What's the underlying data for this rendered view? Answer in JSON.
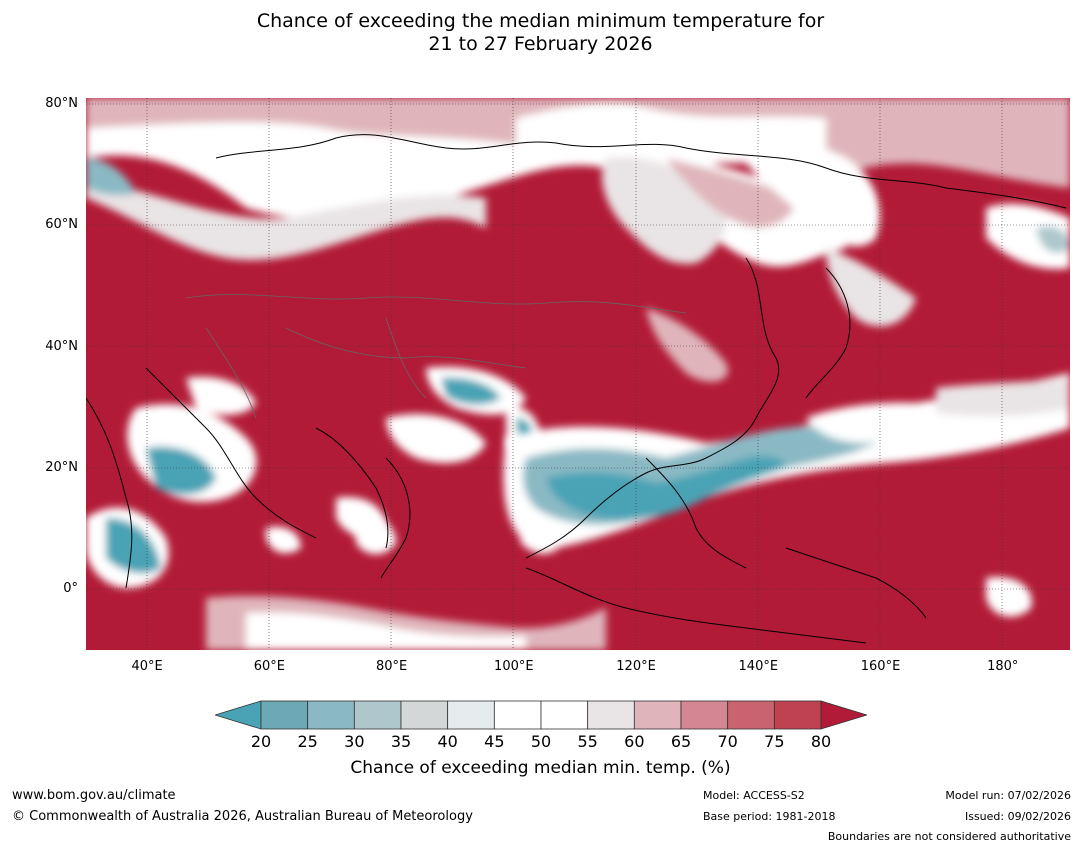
{
  "title": {
    "line1": "Chance of exceeding the median minimum temperature for",
    "line2": "21 to 27 February 2026"
  },
  "map": {
    "lon_range": [
      30,
      191
    ],
    "lat_range": [
      -10,
      81
    ],
    "lat_ticks": [
      {
        "lat": 80,
        "label": "80°N"
      },
      {
        "lat": 60,
        "label": "60°N"
      },
      {
        "lat": 40,
        "label": "40°N"
      },
      {
        "lat": 20,
        "label": "20°N"
      },
      {
        "lat": 0,
        "label": "0°"
      }
    ],
    "lon_ticks": [
      {
        "lon": 40,
        "label": "40°E"
      },
      {
        "lon": 60,
        "label": "60°E"
      },
      {
        "lon": 80,
        "label": "80°E"
      },
      {
        "lon": 100,
        "label": "100°E"
      },
      {
        "lon": 120,
        "label": "120°E"
      },
      {
        "lon": 140,
        "label": "140°E"
      },
      {
        "lon": 160,
        "label": "160°E"
      },
      {
        "lon": 180,
        "label": "180°"
      }
    ],
    "fill_color": "#b21b37"
  },
  "colorbar": {
    "ticks": [
      "20",
      "25",
      "30",
      "35",
      "40",
      "45",
      "50",
      "55",
      "60",
      "65",
      "70",
      "75",
      "80"
    ],
    "colors": [
      "#6aa9b5",
      "#8ab9c4",
      "#adc7cd",
      "#d3d7d8",
      "#e6eced",
      "#ffffff",
      "#ffffff",
      "#e9e4e5",
      "#dfb5bb",
      "#d48792",
      "#c96370",
      "#bf4251"
    ],
    "low_color": "#4aa3b5",
    "high_color": "#b21b37",
    "label": "Chance of exceeding median min. temp. (%)"
  },
  "footer": {
    "website": "www.bom.gov.au/climate",
    "copyright": "© Commonwealth of Australia 2026, Australian Bureau of Meteorology",
    "model": "Model: ACCESS-S2",
    "base_period": "Base period: 1981-2018",
    "model_run": "Model run: 07/02/2026",
    "issued": "Issued: 09/02/2026",
    "disclaimer": "Boundaries are not considered authoritative"
  }
}
